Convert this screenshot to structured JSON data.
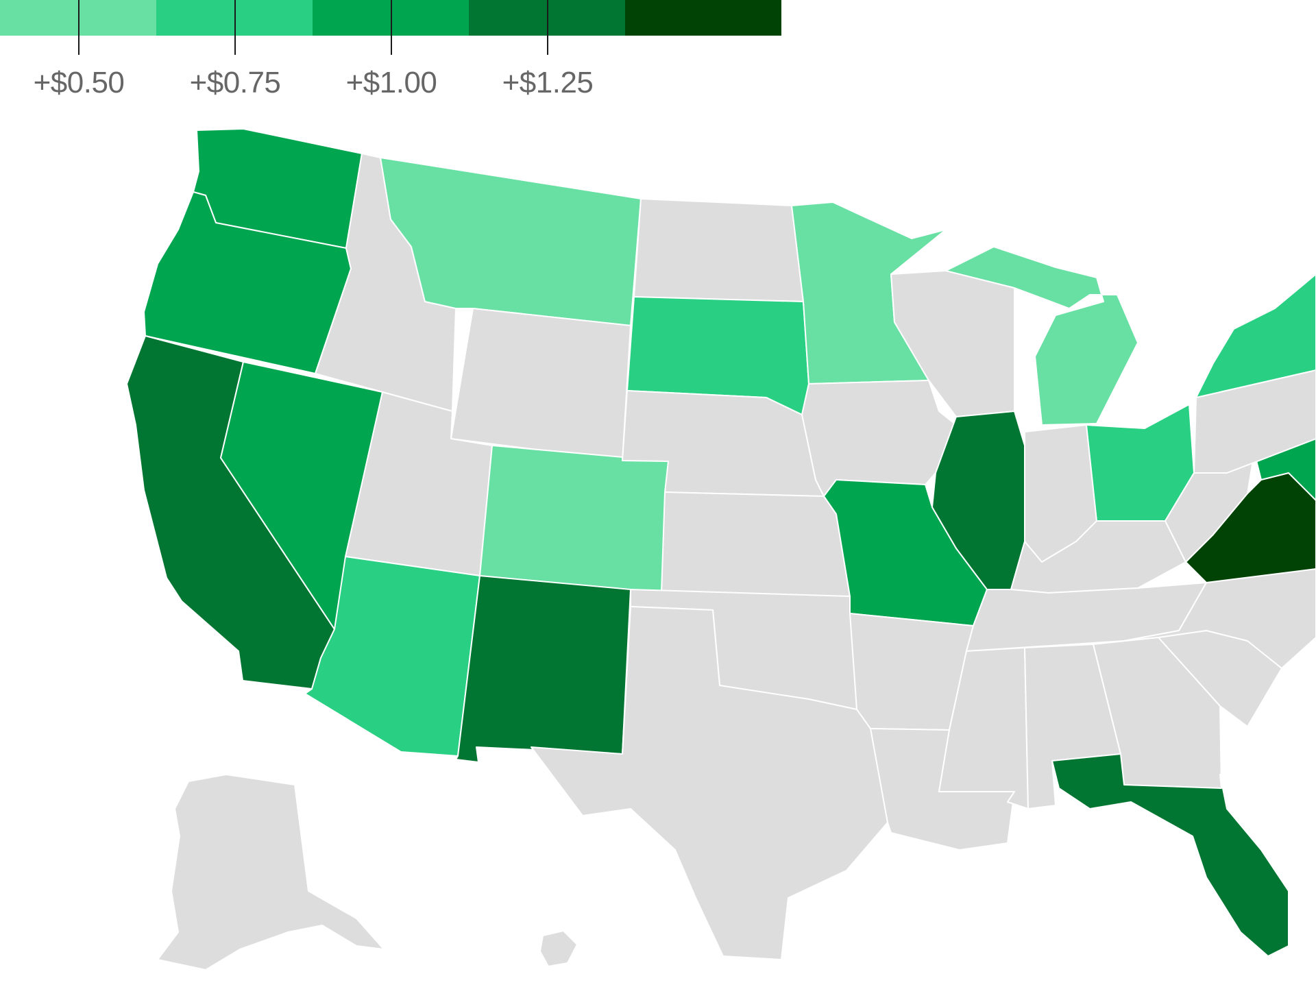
{
  "legend": {
    "colors": [
      "#68e0a3",
      "#29d083",
      "#00a550",
      "#007632",
      "#004304"
    ],
    "tick_labels": [
      "+$0.50",
      "+$0.75",
      "+$1.00",
      "+$1.25"
    ]
  },
  "no_data_color": "#dddddd",
  "states": [
    {
      "id": "WA",
      "bin": 2
    },
    {
      "id": "OR",
      "bin": 2
    },
    {
      "id": "CA",
      "bin": 3
    },
    {
      "id": "NV",
      "bin": 2
    },
    {
      "id": "ID",
      "bin": null
    },
    {
      "id": "MT",
      "bin": 0
    },
    {
      "id": "WY",
      "bin": null
    },
    {
      "id": "UT",
      "bin": null
    },
    {
      "id": "AZ",
      "bin": 1
    },
    {
      "id": "CO",
      "bin": 0
    },
    {
      "id": "NM",
      "bin": 3
    },
    {
      "id": "ND",
      "bin": null
    },
    {
      "id": "SD",
      "bin": 1
    },
    {
      "id": "NE",
      "bin": null
    },
    {
      "id": "KS",
      "bin": null
    },
    {
      "id": "OK",
      "bin": null
    },
    {
      "id": "TX",
      "bin": null
    },
    {
      "id": "MN",
      "bin": 0
    },
    {
      "id": "IA",
      "bin": null
    },
    {
      "id": "MO",
      "bin": 2
    },
    {
      "id": "AR",
      "bin": null
    },
    {
      "id": "LA",
      "bin": null
    },
    {
      "id": "WI",
      "bin": null
    },
    {
      "id": "MI",
      "bin": 0
    },
    {
      "id": "IL",
      "bin": 3
    },
    {
      "id": "IN",
      "bin": null
    },
    {
      "id": "OH",
      "bin": 1
    },
    {
      "id": "KY",
      "bin": null
    },
    {
      "id": "TN",
      "bin": null
    },
    {
      "id": "MS",
      "bin": null
    },
    {
      "id": "AL",
      "bin": null
    },
    {
      "id": "GA",
      "bin": null
    },
    {
      "id": "FL",
      "bin": 3
    },
    {
      "id": "SC",
      "bin": null
    },
    {
      "id": "NC",
      "bin": null
    },
    {
      "id": "VA",
      "bin": 4
    },
    {
      "id": "WV",
      "bin": null
    },
    {
      "id": "PA",
      "bin": null
    },
    {
      "id": "NY",
      "bin": 1
    },
    {
      "id": "MD",
      "bin": 2
    },
    {
      "id": "AK",
      "bin": null
    },
    {
      "id": "HI",
      "bin": null
    }
  ]
}
